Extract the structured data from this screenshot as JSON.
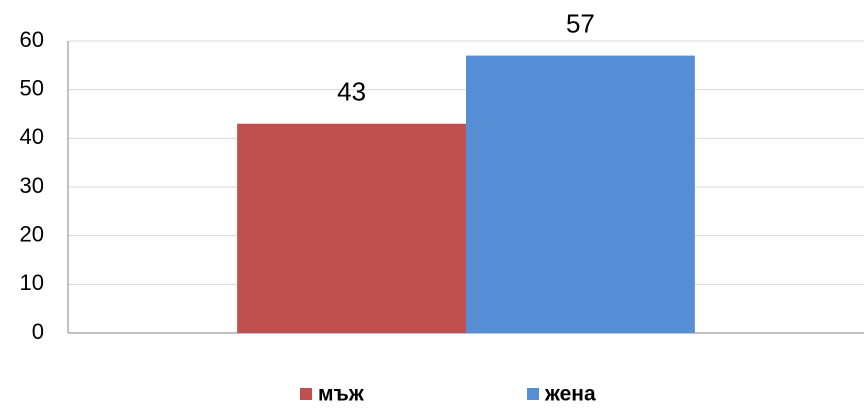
{
  "chart_data": {
    "type": "bar",
    "categories": [
      null
    ],
    "series": [
      {
        "name": "мъж",
        "color": "#c0504d",
        "values": [
          43
        ]
      },
      {
        "name": "жена",
        "color": "#558ed5",
        "values": [
          57
        ]
      }
    ],
    "ylim": [
      0,
      60
    ],
    "yticks": [
      0,
      10,
      20,
      30,
      40,
      50,
      60
    ],
    "grid": true,
    "legend": "bottom",
    "data_labels": true
  }
}
